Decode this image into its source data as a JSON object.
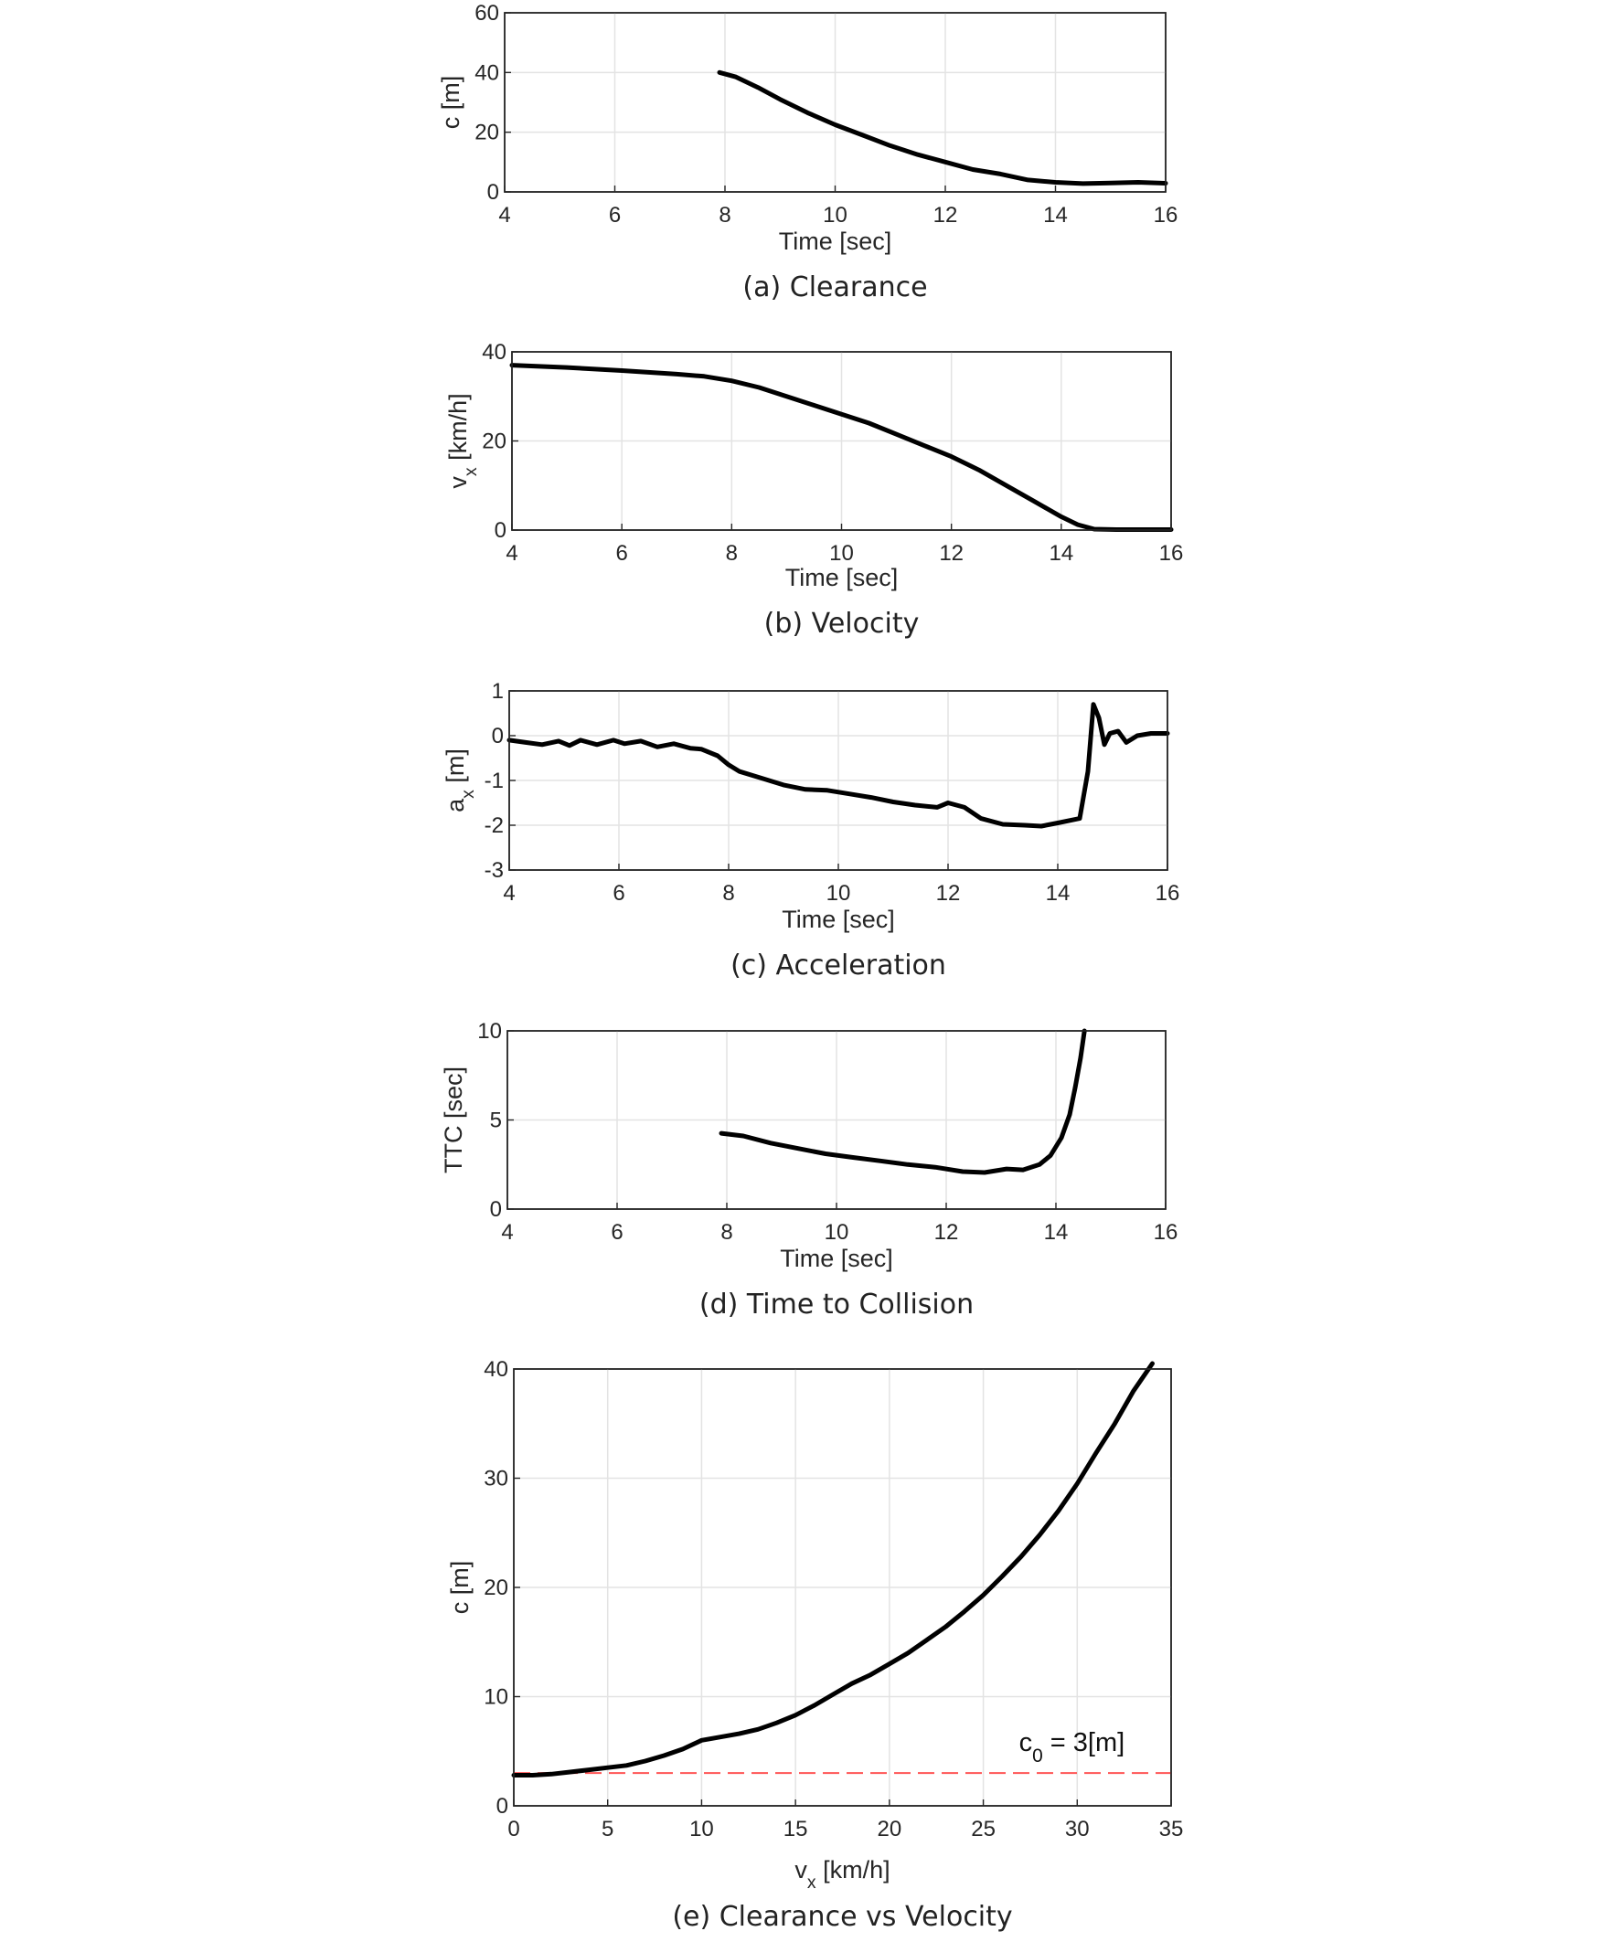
{
  "chart_data": [
    {
      "id": "a",
      "type": "line",
      "caption": "(a)  Clearance",
      "xlabel": "Time [sec]",
      "ylabel": "c [m]",
      "ylabel_sub": "",
      "ylabel_tail": "",
      "xlim": [
        4,
        16
      ],
      "ylim": [
        0,
        60
      ],
      "xticks": [
        4,
        6,
        8,
        10,
        12,
        14,
        16
      ],
      "yticks": [
        0,
        20,
        40,
        60
      ],
      "grid": true,
      "series": [
        {
          "x": [
            7.9,
            8.2,
            8.6,
            9.0,
            9.5,
            10.0,
            10.5,
            11.0,
            11.5,
            12.0,
            12.5,
            13.0,
            13.5,
            14.0,
            14.5,
            15.0,
            15.5,
            16.0
          ],
          "y": [
            40,
            38.5,
            35,
            31,
            26.5,
            22.5,
            19,
            15.5,
            12.5,
            10,
            7.5,
            6,
            4,
            3.2,
            2.8,
            3,
            3.2,
            2.9
          ]
        }
      ]
    },
    {
      "id": "b",
      "type": "line",
      "caption": "(b)  Velocity",
      "xlabel": "Time [sec]",
      "ylabel": "v",
      "ylabel_sub": "x",
      "ylabel_tail": " [km/h]",
      "xlim": [
        4,
        16
      ],
      "ylim": [
        0,
        40
      ],
      "xticks": [
        4,
        6,
        8,
        10,
        12,
        14,
        16
      ],
      "yticks": [
        0,
        20,
        40
      ],
      "grid": true,
      "series": [
        {
          "x": [
            4,
            5,
            6,
            7,
            7.5,
            8,
            8.5,
            9,
            9.5,
            10,
            10.5,
            11,
            11.5,
            12,
            12.5,
            13,
            13.5,
            14,
            14.3,
            14.6,
            15,
            15.5,
            16
          ],
          "y": [
            37,
            36.5,
            35.8,
            35,
            34.5,
            33.5,
            32,
            30,
            28,
            26,
            24,
            21.5,
            19,
            16.5,
            13.5,
            10,
            6.5,
            3,
            1.2,
            0.2,
            0.1,
            0.1,
            0.1
          ]
        }
      ]
    },
    {
      "id": "c",
      "type": "line",
      "caption": "(c)  Acceleration",
      "xlabel": "Time [sec]",
      "ylabel": "a",
      "ylabel_sub": "x",
      "ylabel_tail": " [m]",
      "xlim": [
        4,
        16
      ],
      "ylim": [
        -3,
        1
      ],
      "xticks": [
        4,
        6,
        8,
        10,
        12,
        14,
        16
      ],
      "yticks": [
        -3,
        -2,
        -1,
        0,
        1
      ],
      "grid": true,
      "series": [
        {
          "x": [
            4,
            4.3,
            4.6,
            4.9,
            5.1,
            5.3,
            5.6,
            5.9,
            6.1,
            6.4,
            6.7,
            7.0,
            7.3,
            7.5,
            7.8,
            8.0,
            8.2,
            8.6,
            9.0,
            9.4,
            9.8,
            10.2,
            10.6,
            11.0,
            11.4,
            11.8,
            12.0,
            12.3,
            12.6,
            13.0,
            13.4,
            13.7,
            14.0,
            14.4,
            14.55,
            14.65,
            14.75,
            14.85,
            14.95,
            15.1,
            15.25,
            15.45,
            15.7,
            16.0
          ],
          "y": [
            -0.1,
            -0.15,
            -0.2,
            -0.12,
            -0.22,
            -0.1,
            -0.2,
            -0.1,
            -0.18,
            -0.12,
            -0.25,
            -0.18,
            -0.28,
            -0.3,
            -0.45,
            -0.65,
            -0.8,
            -0.95,
            -1.1,
            -1.2,
            -1.22,
            -1.3,
            -1.38,
            -1.48,
            -1.55,
            -1.6,
            -1.5,
            -1.6,
            -1.85,
            -1.98,
            -2.0,
            -2.02,
            -1.95,
            -1.85,
            -0.8,
            0.7,
            0.4,
            -0.2,
            0.05,
            0.1,
            -0.15,
            0.0,
            0.05,
            0.05
          ]
        }
      ]
    },
    {
      "id": "d",
      "type": "line",
      "caption": "(d)  Time to Collision",
      "xlabel": "Time [sec]",
      "ylabel": "TTC [sec]",
      "ylabel_sub": "",
      "ylabel_tail": "",
      "xlim": [
        4,
        16
      ],
      "ylim": [
        0,
        10
      ],
      "xticks": [
        4,
        6,
        8,
        10,
        12,
        14,
        16
      ],
      "yticks": [
        0,
        5,
        10
      ],
      "grid": true,
      "series": [
        {
          "x": [
            7.9,
            8.3,
            8.8,
            9.3,
            9.8,
            10.3,
            10.8,
            11.3,
            11.8,
            12.3,
            12.7,
            13.1,
            13.4,
            13.7,
            13.9,
            14.1,
            14.25,
            14.35,
            14.45,
            14.52
          ],
          "y": [
            4.25,
            4.1,
            3.7,
            3.4,
            3.1,
            2.9,
            2.7,
            2.5,
            2.35,
            2.1,
            2.05,
            2.25,
            2.2,
            2.5,
            3.0,
            4.0,
            5.3,
            6.8,
            8.5,
            10.0
          ]
        }
      ]
    },
    {
      "id": "e",
      "type": "line",
      "caption": "(e)  Clearance vs Velocity",
      "xlabel": "v",
      "xlabel_sub": "x",
      "xlabel_tail": " [km/h]",
      "ylabel": "c [m]",
      "ylabel_sub": "",
      "ylabel_tail": "",
      "xlim": [
        0,
        35
      ],
      "ylim": [
        0,
        40
      ],
      "xticks": [
        0,
        5,
        10,
        15,
        20,
        25,
        30,
        35
      ],
      "yticks": [
        0,
        10,
        20,
        30,
        40
      ],
      "grid": true,
      "series": [
        {
          "x": [
            0,
            1,
            2,
            3,
            4,
            5,
            6,
            7,
            8,
            9,
            10,
            11,
            12,
            13,
            14,
            15,
            16,
            17,
            18,
            19,
            20,
            21,
            22,
            23,
            24,
            25,
            26,
            27,
            28,
            29,
            30,
            31,
            32,
            33,
            34
          ],
          "y": [
            2.8,
            2.8,
            2.9,
            3.1,
            3.3,
            3.5,
            3.7,
            4.1,
            4.6,
            5.2,
            6.0,
            6.3,
            6.6,
            7.0,
            7.6,
            8.3,
            9.2,
            10.2,
            11.2,
            12.0,
            13.0,
            14.0,
            15.2,
            16.4,
            17.8,
            19.3,
            21.0,
            22.8,
            24.8,
            27.0,
            29.5,
            32.3,
            35.0,
            38.0,
            40.5
          ]
        }
      ],
      "reference_line": {
        "y": 3,
        "color": "#ff5555",
        "label": "c",
        "label_sub": "0",
        "label_tail": " = 3[m]"
      }
    }
  ]
}
